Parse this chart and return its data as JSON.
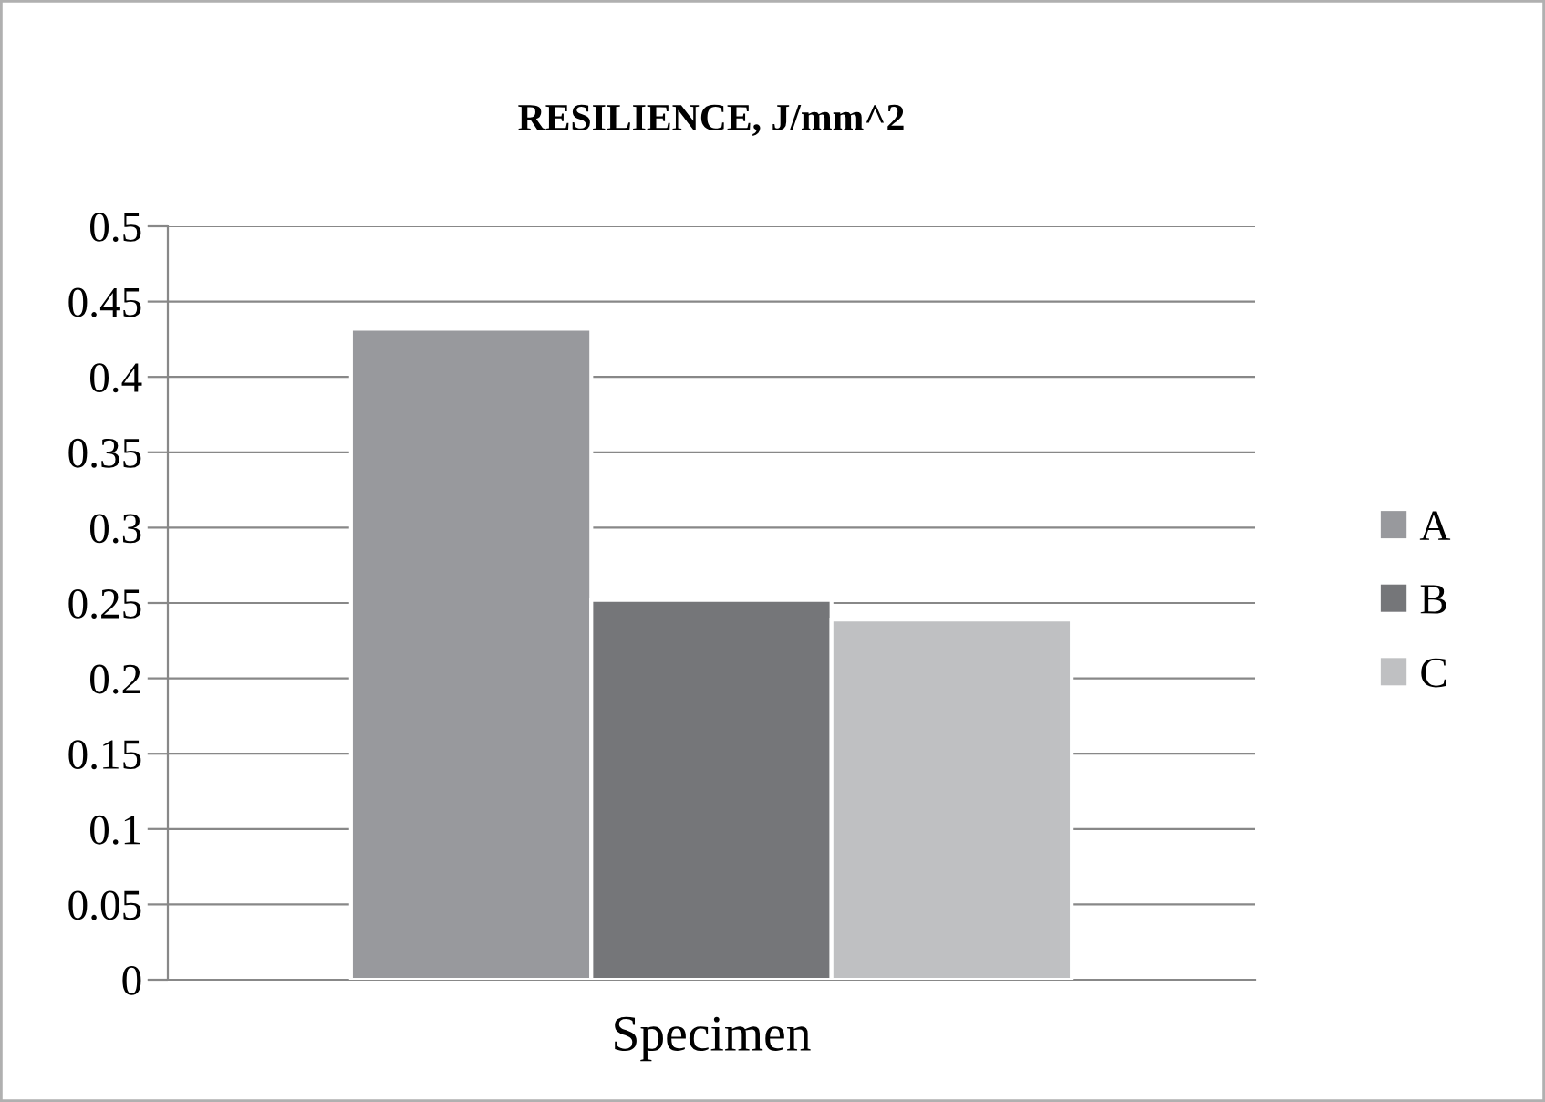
{
  "chart_data": {
    "type": "bar",
    "title": "RESILIENCE, J/mm^2",
    "categories": [
      "Specimen"
    ],
    "series": [
      {
        "name": "A",
        "color": "#98999d",
        "values": [
          0.432
        ]
      },
      {
        "name": "B",
        "color": "#757679",
        "values": [
          0.252
        ]
      },
      {
        "name": "C",
        "color": "#bfc0c2",
        "values": [
          0.239
        ]
      }
    ],
    "ylim": [
      0,
      0.5
    ],
    "yticks": [
      0,
      {
        "value": 0.05,
        "label": "0.05"
      },
      {
        "value": 0.1,
        "label": "0.1"
      },
      {
        "value": 0.15,
        "label": "0.15"
      },
      {
        "value": 0.2,
        "label": "0.2"
      },
      {
        "value": 0.25,
        "label": "0.25"
      },
      {
        "value": 0.3,
        "label": "0.3"
      },
      {
        "value": 0.35,
        "label": "0.35"
      },
      {
        "value": 0.4,
        "label": "0.4"
      },
      {
        "value": 0.45,
        "label": "0.45"
      },
      {
        "value": 0.5,
        "label": "0.5"
      }
    ],
    "grid": "y",
    "legend": "right"
  }
}
